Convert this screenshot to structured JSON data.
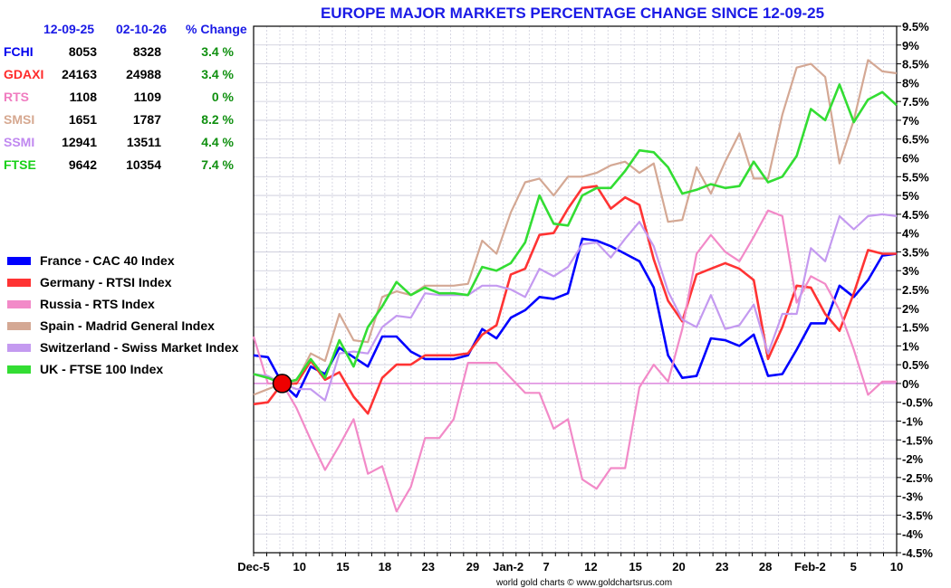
{
  "title": "EUROPE MAJOR MARKETS PERCENTAGE CHANGE SINCE 12-09-25",
  "credit": "world gold charts © www.goldchartsrus.com",
  "table": {
    "headers": [
      "12-09-25",
      "02-10-26",
      "% Change"
    ],
    "rows": [
      {
        "name": "FCHI",
        "start": "8053",
        "end": "8328",
        "change": "3.4 %",
        "color": "#0000ee"
      },
      {
        "name": "GDAXI",
        "start": "24163",
        "end": "24988",
        "change": "3.4 %",
        "color": "#ff2a2a"
      },
      {
        "name": "RTS",
        "start": "1108",
        "end": "1109",
        "change": "0 %",
        "color": "#f07cc0"
      },
      {
        "name": "SMSI",
        "start": "1651",
        "end": "1787",
        "change": "8.2 %",
        "color": "#d6a890"
      },
      {
        "name": "SSMI",
        "start": "12941",
        "end": "13511",
        "change": "4.4 %",
        "color": "#c088f0"
      },
      {
        "name": "FTSE",
        "start": "9642",
        "end": "10354",
        "change": "7.4 %",
        "color": "#18d018"
      }
    ]
  },
  "legend": [
    {
      "label": "France - CAC 40 Index",
      "color": "#0000ff"
    },
    {
      "label": "Germany - RTSI Index",
      "color": "#ff3333"
    },
    {
      "label": "Russia - RTS Index",
      "color": "#f28ac8"
    },
    {
      "label": "Spain - Madrid General Index",
      "color": "#d4a894"
    },
    {
      "label": "Switzerland - Swiss Market Index",
      "color": "#c49af0"
    },
    {
      "label": "UK - FTSE 100 Index",
      "color": "#33dd33"
    }
  ],
  "chart_data": {
    "type": "line",
    "title": "EUROPE MAJOR MARKETS PERCENTAGE CHANGE SINCE 12-09-25",
    "ylim": [
      -4.5,
      9.5
    ],
    "y_ticks": [
      "9.5%",
      "9%",
      "8.5%",
      "8%",
      "7.5%",
      "7%",
      "6.5%",
      "6%",
      "5.5%",
      "5%",
      "4.5%",
      "4%",
      "3.5%",
      "3%",
      "2.5%",
      "2%",
      "1.5%",
      "1%",
      "0.5%",
      "0%",
      "-0.5%",
      "-1%",
      "-1.5%",
      "-2%",
      "-2.5%",
      "-3%",
      "-3.5%",
      "-4%",
      "-4.5%"
    ],
    "x_tick_labels": [
      "Dec-5",
      "10",
      "15",
      "18",
      "23",
      "29",
      "Jan-2",
      "7",
      "12",
      "15",
      "20",
      "23",
      "28",
      "Feb-2",
      "5",
      "10"
    ],
    "x_tick_index": [
      0,
      3.5,
      6.8,
      10,
      13.3,
      16.7,
      19.4,
      22.3,
      25.7,
      29.1,
      32.4,
      35.7,
      39,
      42.4,
      45.7,
      49
    ],
    "grid": true,
    "base_marker": {
      "index": 2,
      "value": 0
    },
    "series": [
      {
        "name": "France - CAC 40 Index",
        "values": [
          0.75,
          0.7,
          0,
          -0.35,
          0.45,
          0.25,
          0.95,
          0.7,
          0.45,
          1.25,
          1.25,
          0.85,
          0.65,
          0.65,
          0.65,
          0.75,
          1.45,
          1.2,
          1.75,
          1.95,
          2.3,
          2.25,
          2.4,
          3.85,
          3.8,
          3.65,
          3.45,
          3.25,
          2.55,
          0.75,
          0.15,
          0.2,
          1.2,
          1.15,
          1.0,
          1.3,
          0.2,
          0.25,
          0.9,
          1.6,
          1.6,
          2.6,
          2.3,
          2.75,
          3.4,
          3.45
        ]
      },
      {
        "name": "Germany - RTSI Index",
        "values": [
          -0.55,
          -0.5,
          0,
          0.0,
          0.6,
          0.1,
          0.3,
          -0.35,
          -0.8,
          0.15,
          0.5,
          0.5,
          0.75,
          0.75,
          0.75,
          0.8,
          1.3,
          1.55,
          2.9,
          3.05,
          3.95,
          4.0,
          4.65,
          5.2,
          5.25,
          4.65,
          4.95,
          4.75,
          3.3,
          2.2,
          1.65,
          2.9,
          3.05,
          3.2,
          3.05,
          2.75,
          0.65,
          1.5,
          2.6,
          2.55,
          1.85,
          1.4,
          2.4,
          3.55,
          3.45,
          3.45
        ]
      },
      {
        "name": "Russia - RTS Index",
        "values": [
          1.25,
          0.0,
          0,
          -0.65,
          -1.5,
          -2.3,
          -1.65,
          -0.95,
          -2.4,
          -2.2,
          -3.4,
          -2.75,
          -1.45,
          -1.45,
          -0.95,
          0.55,
          0.55,
          0.55,
          0.15,
          -0.25,
          -0.25,
          -1.2,
          -0.95,
          -2.55,
          -2.8,
          -2.25,
          -2.25,
          -0.1,
          0.5,
          0.05,
          1.45,
          3.45,
          3.95,
          3.5,
          3.25,
          3.9,
          4.6,
          4.45,
          2.15,
          2.85,
          2.65,
          1.95,
          0.9,
          -0.3,
          0.05,
          0.05
        ]
      },
      {
        "name": "Spain - Madrid General Index",
        "values": [
          -0.3,
          -0.15,
          0,
          0.05,
          0.8,
          0.6,
          1.85,
          1.15,
          1.1,
          2.3,
          2.45,
          2.35,
          2.6,
          2.6,
          2.6,
          2.65,
          3.8,
          3.45,
          4.55,
          5.35,
          5.45,
          5.0,
          5.5,
          5.5,
          5.6,
          5.8,
          5.9,
          5.6,
          5.85,
          4.3,
          4.35,
          5.75,
          5.05,
          5.9,
          6.65,
          5.45,
          5.45,
          7.15,
          8.4,
          8.5,
          8.15,
          5.85,
          7.0,
          8.6,
          8.3,
          8.25
        ]
      },
      {
        "name": "Switzerland - Swiss Market Index",
        "values": [
          0.25,
          0.2,
          0,
          -0.15,
          -0.15,
          -0.45,
          0.8,
          0.85,
          0.8,
          1.5,
          1.8,
          1.75,
          2.4,
          2.35,
          2.35,
          2.35,
          2.6,
          2.6,
          2.5,
          2.3,
          3.05,
          2.85,
          3.1,
          3.7,
          3.75,
          3.35,
          3.85,
          4.3,
          3.65,
          2.45,
          1.7,
          1.5,
          2.35,
          1.45,
          1.55,
          2.1,
          0.8,
          1.85,
          1.85,
          3.6,
          3.25,
          4.45,
          4.1,
          4.45,
          4.5,
          4.45
        ]
      },
      {
        "name": "UK - FTSE 100 Index",
        "values": [
          0.25,
          0.15,
          0,
          0.1,
          0.65,
          0.15,
          1.15,
          0.45,
          1.5,
          2.05,
          2.7,
          2.35,
          2.55,
          2.4,
          2.4,
          2.35,
          3.1,
          3.0,
          3.2,
          3.75,
          5.0,
          4.25,
          4.2,
          5.0,
          5.2,
          5.2,
          5.65,
          6.2,
          6.15,
          5.75,
          5.05,
          5.15,
          5.3,
          5.2,
          5.25,
          5.9,
          5.35,
          5.5,
          6.05,
          7.3,
          7.0,
          7.95,
          6.95,
          7.55,
          7.75,
          7.4
        ]
      }
    ]
  }
}
